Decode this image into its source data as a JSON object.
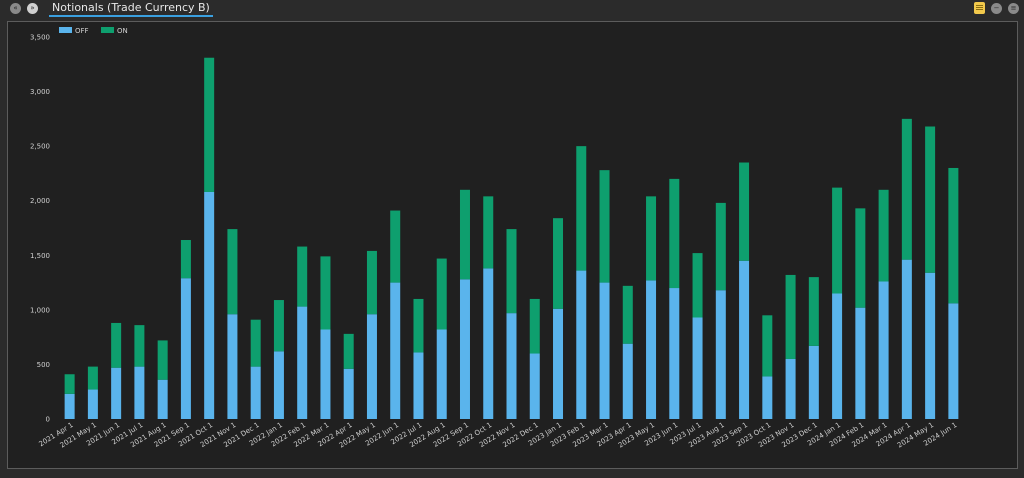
{
  "header": {
    "title": "Notionals (Trade Currency B)",
    "back_glyph": "«",
    "forward_glyph": "»",
    "icons": [
      "back-icon",
      "forward-icon",
      "note-icon",
      "minus-icon",
      "settings-icon"
    ]
  },
  "colors": {
    "off": "#5ab4ec",
    "on": "#0e9f6e",
    "background": "#202020",
    "text": "#d0d0d0"
  },
  "chart_data": {
    "type": "bar",
    "stacked": true,
    "title": "",
    "xlabel": "",
    "ylabel": "",
    "ylim": [
      0,
      3500
    ],
    "yticks": [
      "0",
      "500",
      "1,000",
      "1,500",
      "2,000",
      "2,500",
      "3,000",
      "3,500"
    ],
    "legend_position": "top-left",
    "categories": [
      "2021 Apr 1",
      "2021 May 1",
      "2021 Jun 1",
      "2021 Jul 1",
      "2021 Aug 1",
      "2021 Sep 1",
      "2021 Oct 1",
      "2021 Nov 1",
      "2021 Dec 1",
      "2022 Jan 1",
      "2022 Feb 1",
      "2022 Mar 1",
      "2022 Apr 1",
      "2022 May 1",
      "2022 Jun 1",
      "2022 Jul 1",
      "2022 Aug 1",
      "2022 Sep 1",
      "2022 Oct 1",
      "2022 Nov 1",
      "2022 Dec 1",
      "2023 Jan 1",
      "2023 Feb 1",
      "2023 Mar 1",
      "2023 Apr 1",
      "2023 May 1",
      "2023 Jun 1",
      "2023 Jul 1",
      "2023 Aug 1",
      "2023 Sep 1",
      "2023 Oct 1",
      "2023 Nov 1",
      "2023 Dec 1",
      "2024 Jan 1",
      "2024 Feb 1",
      "2024 Mar 1",
      "2024 Apr 1",
      "2024 May 1",
      "2024 Jun 1"
    ],
    "series": [
      {
        "name": "OFF",
        "values": [
          230,
          270,
          470,
          480,
          360,
          1290,
          2080,
          960,
          480,
          620,
          1030,
          820,
          460,
          960,
          1250,
          610,
          820,
          1280,
          1380,
          970,
          600,
          1010,
          1360,
          1250,
          690,
          1270,
          1200,
          930,
          1180,
          1450,
          390,
          550,
          670,
          1150,
          1020,
          1260,
          1460,
          1340,
          1060
        ]
      },
      {
        "name": "ON",
        "values": [
          180,
          210,
          410,
          380,
          360,
          350,
          1230,
          780,
          430,
          470,
          550,
          670,
          320,
          580,
          660,
          490,
          650,
          820,
          660,
          770,
          500,
          830,
          1140,
          1030,
          530,
          770,
          1000,
          590,
          800,
          900,
          560,
          770,
          630,
          970,
          910,
          840,
          1290,
          1340,
          1240
        ]
      }
    ]
  }
}
